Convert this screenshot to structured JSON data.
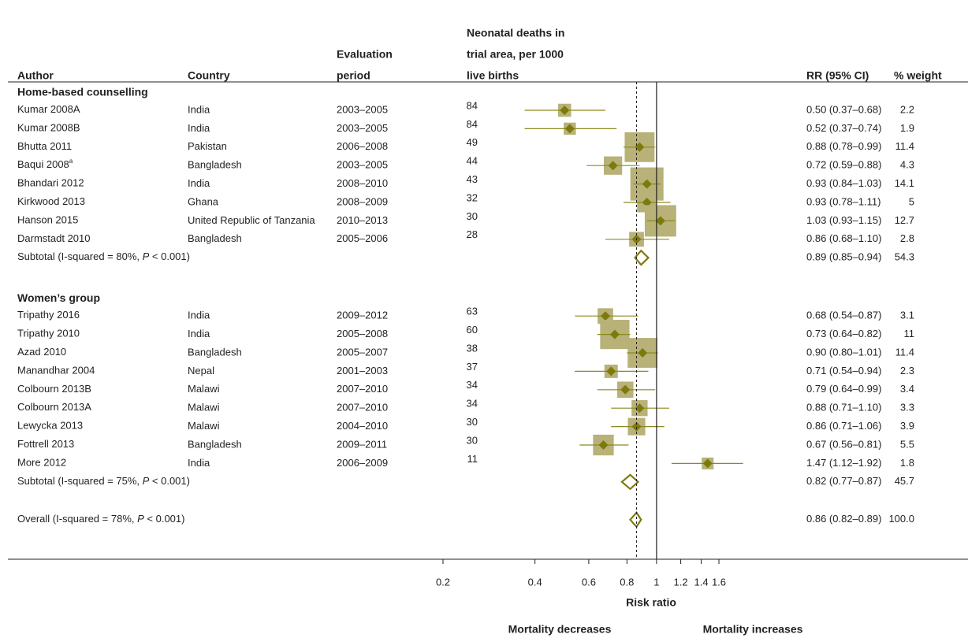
{
  "chart_data": {
    "type": "forest",
    "columns": {
      "author": [
        "Author"
      ],
      "country": [
        "Country"
      ],
      "period": [
        "Evaluation",
        "period"
      ],
      "deaths": [
        "Neonatal deaths in",
        "trial area, per 1000",
        "live births"
      ],
      "ci": [
        "RR (95% CI)"
      ],
      "weight": [
        "% weight"
      ]
    },
    "groups": [
      {
        "title": "Home-based counselling",
        "rows": [
          {
            "author": "Kumar 2008A",
            "country": "India",
            "period": "2003–2005",
            "deaths": 84,
            "rr": 0.5,
            "lower": 0.37,
            "upper": 0.68,
            "ci_label": "0.50 (0.37–0.68)",
            "weight": 2.2
          },
          {
            "author": "Kumar 2008B",
            "country": "India",
            "period": "2003–2005",
            "deaths": 84,
            "rr": 0.52,
            "lower": 0.37,
            "upper": 0.74,
            "ci_label": "0.52 (0.37–0.74)",
            "weight": 1.9
          },
          {
            "author": "Bhutta 2011",
            "country": "Pakistan",
            "period": "2006–2008",
            "deaths": 49,
            "rr": 0.88,
            "lower": 0.78,
            "upper": 0.99,
            "ci_label": "0.88 (0.78–0.99)",
            "weight": 11.4
          },
          {
            "author": "Baqui 2008",
            "note": "a",
            "country": "Bangladesh",
            "period": "2003–2005",
            "deaths": 44,
            "rr": 0.72,
            "lower": 0.59,
            "upper": 0.88,
            "ci_label": "0.72 (0.59–0.88)",
            "weight": 4.3
          },
          {
            "author": "Bhandari 2012",
            "country": "India",
            "period": "2008–2010",
            "deaths": 43,
            "rr": 0.93,
            "lower": 0.84,
            "upper": 1.03,
            "ci_label": "0.93 (0.84–1.03)",
            "weight": 14.1
          },
          {
            "author": "Kirkwood 2013",
            "country": "Ghana",
            "period": "2008–2009",
            "deaths": 32,
            "rr": 0.93,
            "lower": 0.78,
            "upper": 1.11,
            "ci_label": "0.93 (0.78–1.11)",
            "weight": 5
          },
          {
            "author": "Hanson 2015",
            "country": "United Republic of Tanzania",
            "period": "2010–2013",
            "deaths": 30,
            "rr": 1.03,
            "lower": 0.93,
            "upper": 1.15,
            "ci_label": "1.03 (0.93–1.15)",
            "weight": 12.7
          },
          {
            "author": "Darmstadt 2010",
            "country": "Bangladesh",
            "period": "2005–2006",
            "deaths": 28,
            "rr": 0.86,
            "lower": 0.68,
            "upper": 1.1,
            "ci_label": "0.86 (0.68–1.10)",
            "weight": 2.8
          }
        ],
        "subtotal": {
          "label_parts": [
            "Subtotal  (I-squared = 80%, ",
            "P",
            " < 0.001)"
          ],
          "rr": 0.89,
          "lower": 0.85,
          "upper": 0.94,
          "ci_label": "0.89 (0.85–0.94)",
          "weight": 54.3
        }
      },
      {
        "title": "Women’s group",
        "rows": [
          {
            "author": "Tripathy 2016",
            "country": "India",
            "period": "2009–2012",
            "deaths": 63,
            "rr": 0.68,
            "lower": 0.54,
            "upper": 0.87,
            "ci_label": "0.68 (0.54–0.87)",
            "weight": 3.1
          },
          {
            "author": "Tripathy 2010",
            "country": "India",
            "period": "2005–2008",
            "deaths": 60,
            "rr": 0.73,
            "lower": 0.64,
            "upper": 0.82,
            "ci_label": "0.73 (0.64–0.82)",
            "weight": 11
          },
          {
            "author": "Azad 2010",
            "country": "Bangladesh",
            "period": "2005–2007",
            "deaths": 38,
            "rr": 0.9,
            "lower": 0.8,
            "upper": 1.01,
            "ci_label": "0.90 (0.80–1.01)",
            "weight": 11.4
          },
          {
            "author": "Manandhar 2004",
            "country": "Nepal",
            "period": "2001–2003",
            "deaths": 37,
            "rr": 0.71,
            "lower": 0.54,
            "upper": 0.94,
            "ci_label": "0.71 (0.54–0.94)",
            "weight": 2.3
          },
          {
            "author": "Colbourn 2013B",
            "country": "Malawi",
            "period": "2007–2010",
            "deaths": 34,
            "rr": 0.79,
            "lower": 0.64,
            "upper": 0.99,
            "ci_label": "0.79 (0.64–0.99)",
            "weight": 3.4
          },
          {
            "author": "Colbourn 2013A",
            "country": "Malawi",
            "period": "2007–2010",
            "deaths": 34,
            "rr": 0.88,
            "lower": 0.71,
            "upper": 1.1,
            "ci_label": "0.88 (0.71–1.10)",
            "weight": 3.3
          },
          {
            "author": "Lewycka 2013",
            "country": "Malawi",
            "period": "2004–2010",
            "deaths": 30,
            "rr": 0.86,
            "lower": 0.71,
            "upper": 1.06,
            "ci_label": "0.86 (0.71–1.06)",
            "weight": 3.9
          },
          {
            "author": "Fottrell 2013",
            "country": "Bangladesh",
            "period": "2009–2011",
            "deaths": 30,
            "rr": 0.67,
            "lower": 0.56,
            "upper": 0.81,
            "ci_label": "0.67 (0.56–0.81)",
            "weight": 5.5
          },
          {
            "author": "More 2012",
            "country": "India",
            "period": "2006–2009",
            "deaths": 11,
            "rr": 1.47,
            "lower": 1.12,
            "upper": 1.92,
            "ci_label": "1.47 (1.12–1.92)",
            "weight": 1.8
          }
        ],
        "subtotal": {
          "label_parts": [
            "Subtotal  (I-squared = 75%, ",
            "P",
            " < 0.001)"
          ],
          "rr": 0.82,
          "lower": 0.77,
          "upper": 0.87,
          "ci_label": "0.82 (0.77–0.87)",
          "weight": 45.7
        }
      }
    ],
    "overall": {
      "label_parts": [
        "Overall  (I-squared = 78%, ",
        "P",
        " < 0.001)"
      ],
      "rr": 0.86,
      "lower": 0.82,
      "upper": 0.89,
      "ci_label": "0.86 (0.82–0.89)",
      "weight": 100,
      "weight_label": "100.0"
    },
    "xlabel": "Risk ratio",
    "xlim": [
      0.2,
      1.6
    ],
    "xticks": [
      0.2,
      0.4,
      0.6,
      0.8,
      1,
      1.2,
      1.4,
      1.6
    ],
    "log_scale": true,
    "reference_line": 1,
    "annotations": [
      "Mortality decreases",
      "Mortality increases"
    ],
    "colors": {
      "box": "#b8b178",
      "point": "#7d7a0c",
      "ci": "#8c8a1e",
      "diamond": "#7d7a0c"
    }
  }
}
